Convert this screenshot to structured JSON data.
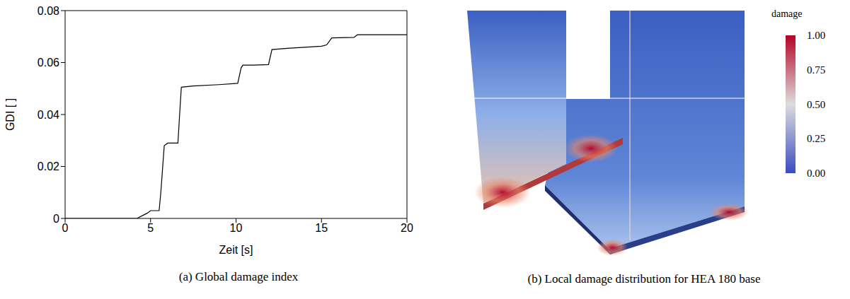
{
  "chart_data": [
    {
      "type": "line",
      "caption": "(a) Global damage index",
      "x_label": "Zeit [s]",
      "y_label": "GDI [ ]",
      "x": [
        0,
        4.2,
        4.8,
        5.0,
        5.1,
        5.5,
        5.6,
        5.8,
        6.0,
        6.6,
        6.7,
        6.8,
        7.5,
        9,
        10.1,
        10.3,
        10.4,
        11,
        11.9,
        12.1,
        13,
        15,
        15.3,
        15.6,
        16.9,
        17.1,
        20
      ],
      "series": [
        {
          "color": "#000000",
          "values": [
            0,
            0,
            0.002,
            0.003,
            0.003,
            0.003,
            0.01,
            0.028,
            0.029,
            0.029,
            0.04,
            0.0505,
            0.051,
            0.0515,
            0.052,
            0.058,
            0.059,
            0.059,
            0.0592,
            0.065,
            0.0655,
            0.0663,
            0.0668,
            0.0695,
            0.0697,
            0.0707,
            0.0707
          ]
        }
      ],
      "xlim": [
        0,
        20
      ],
      "xticks": [
        0,
        5,
        10,
        15,
        20
      ],
      "ylim": [
        0,
        0.08
      ],
      "yticks": [
        0,
        0.02,
        0.04,
        0.06,
        0.08
      ],
      "grid": false
    },
    {
      "type": "image",
      "caption": "(b) Local damage distribution for HEA 180 base",
      "colorbar": {
        "label": "damage",
        "range": [
          0,
          1
        ],
        "ticks": [
          {
            "value": 0,
            "label": "0.00"
          },
          {
            "value": 0.25,
            "label": "0.25"
          },
          {
            "value": 0.5,
            "label": "0.50"
          },
          {
            "value": 0.75,
            "label": "0.75"
          },
          {
            "value": 1,
            "label": "1.00"
          }
        ],
        "colors": [
          "#3b4cc0",
          "#dddddd",
          "#b40426"
        ]
      }
    }
  ]
}
